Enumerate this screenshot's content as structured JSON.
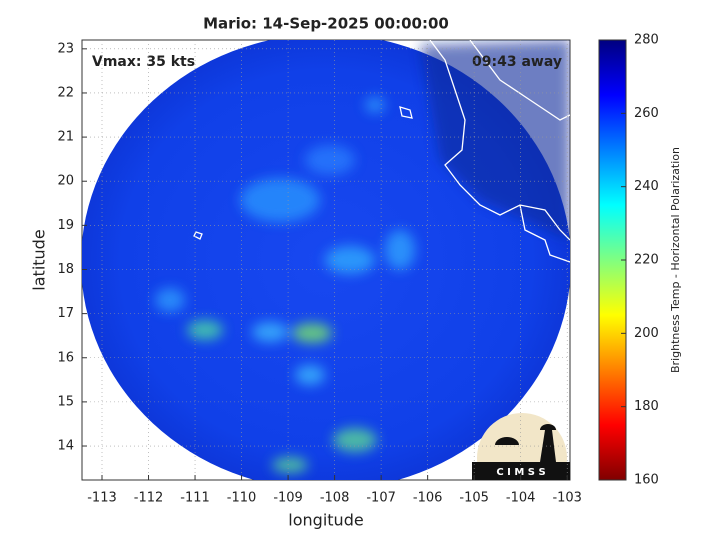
{
  "chart_data": {
    "type": "map",
    "title": "Mario: 14-Sep-2025 00:00:00",
    "annotations": [
      "Vmax: 35 kts",
      "09:43 away"
    ],
    "xlabel": "longitude",
    "ylabel": "latitude",
    "xlim": [
      -113.43,
      -102.94
    ],
    "ylim": [
      13.23,
      23.2
    ],
    "xticks": [
      -113,
      -112,
      -111,
      -110,
      -109,
      -108,
      -107,
      -106,
      -105,
      -104,
      -103
    ],
    "yticks": [
      14,
      15,
      16,
      17,
      18,
      19,
      20,
      21,
      22,
      23
    ],
    "grid": true,
    "colorbar": {
      "label": "Brightness Temp - Horizontal Polarization",
      "lim": [
        160,
        280
      ],
      "ticks": [
        160,
        180,
        200,
        220,
        240,
        260,
        280
      ],
      "colormap": [
        "#800000",
        "#ff0000",
        "#ff8000",
        "#ffff00",
        "#80ff80",
        "#00ffff",
        "#0080ff",
        "#0000ff",
        "#000080"
      ]
    },
    "logo": "C I M S S"
  }
}
